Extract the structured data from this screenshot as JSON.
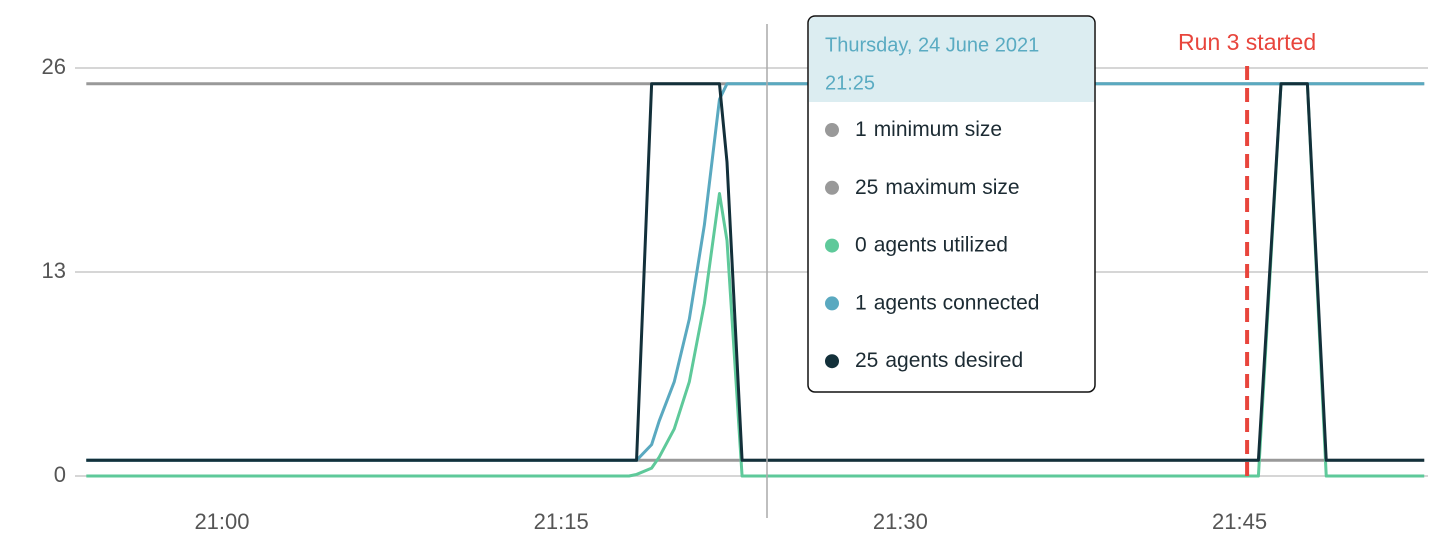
{
  "chart_data": {
    "type": "line",
    "x": [
      "20:54",
      "21:18",
      "21:18:20",
      "21:19",
      "21:19:20",
      "21:20",
      "21:20:40",
      "21:21:20",
      "21:22",
      "21:22:20",
      "21:23",
      "21:23:20",
      "21:45:50",
      "21:46:50",
      "21:48",
      "21:48:50",
      "21:53:10"
    ],
    "xlim": [
      "20:53:30",
      "21:53:20"
    ],
    "xticks": [
      "21:00",
      "21:15",
      "21:30",
      "21:45"
    ],
    "ylim": [
      0,
      26
    ],
    "yticks": [
      0,
      13,
      26
    ],
    "grid": true,
    "series": [
      {
        "name": "minimum size",
        "color": "#999999",
        "values": [
          1,
          1,
          1,
          1,
          1,
          1,
          1,
          1,
          1,
          1,
          1,
          1,
          1,
          1,
          1,
          1,
          1
        ]
      },
      {
        "name": "maximum size",
        "color": "#999999",
        "values": [
          25,
          25,
          25,
          25,
          25,
          25,
          25,
          25,
          25,
          25,
          25,
          25,
          25,
          25,
          25,
          25,
          25
        ]
      },
      {
        "name": "agents utilized",
        "color": "#5ec99a",
        "values": [
          0,
          0,
          0.1,
          0.5,
          1.2,
          3,
          6,
          11,
          18,
          15,
          0,
          0,
          0,
          25,
          25,
          0,
          0
        ]
      },
      {
        "name": "agents connected",
        "color": "#5aa9c0",
        "values": [
          1,
          1,
          1,
          2,
          3.5,
          6,
          10,
          16,
          24,
          25,
          25,
          25,
          25,
          25,
          25,
          25,
          25
        ]
      },
      {
        "name": "agents desired",
        "color": "#13303a",
        "values": [
          1,
          1,
          1,
          25,
          25,
          25,
          25,
          25,
          25,
          20,
          1,
          1,
          1,
          25,
          25,
          1,
          1
        ]
      }
    ],
    "annotation": {
      "text": "Run 3 started",
      "x": "21:45:20",
      "color": "#e8453c"
    },
    "tooltip": {
      "title": "Thursday, 24 June 2021",
      "time": "21:25",
      "values": [
        1,
        25,
        0,
        1,
        25
      ]
    }
  }
}
